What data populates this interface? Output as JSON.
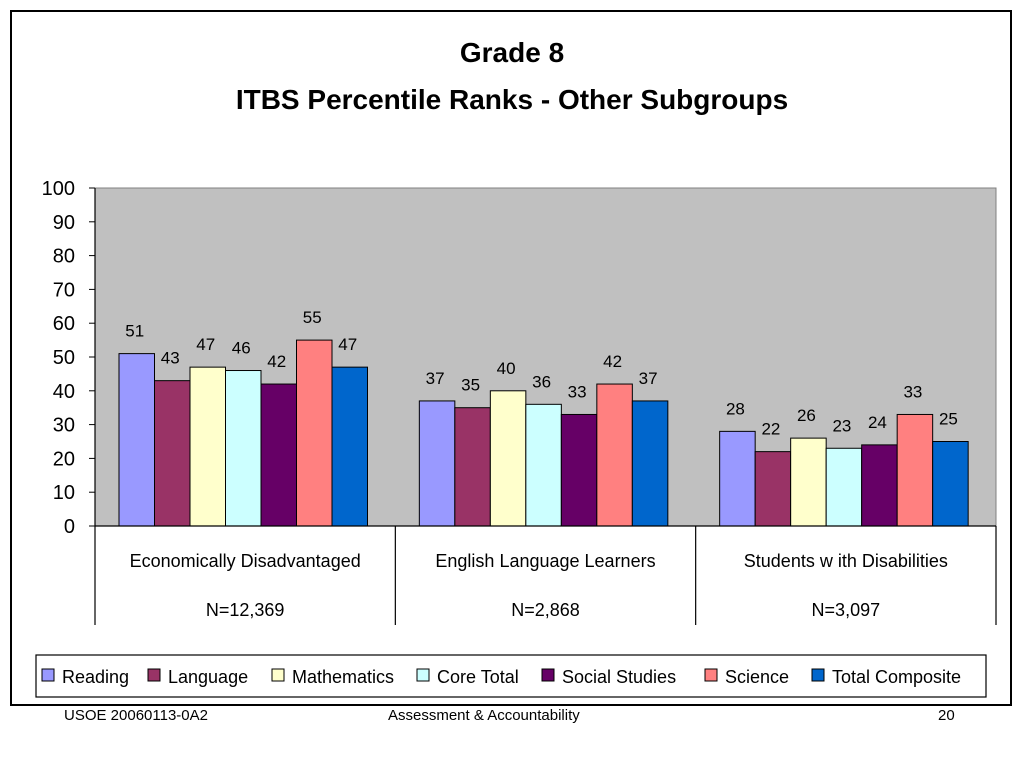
{
  "chart_data": {
    "type": "bar",
    "title": "Grade 8",
    "subtitle": "ITBS Percentile Ranks - Other Subgroups",
    "xlabel": "",
    "ylabel": "",
    "ylim": [
      0,
      100
    ],
    "yticks": [
      0,
      10,
      20,
      30,
      40,
      50,
      60,
      70,
      80,
      90,
      100
    ],
    "grid": false,
    "legend_position": "bottom",
    "categories": [
      "Economically Disadvantaged",
      "English Language Learners",
      "Students w ith Disabilities"
    ],
    "category_counts": [
      "N=12,369",
      "N=2,868",
      "N=3,097"
    ],
    "series": [
      {
        "name": "Reading",
        "color": "#9999ff",
        "values": [
          51,
          37,
          28
        ]
      },
      {
        "name": "Language",
        "color": "#993366",
        "values": [
          43,
          35,
          22
        ]
      },
      {
        "name": "Mathematics",
        "color": "#ffffcc",
        "values": [
          47,
          40,
          26
        ]
      },
      {
        "name": "Core Total",
        "color": "#ccffff",
        "values": [
          46,
          36,
          23
        ]
      },
      {
        "name": "Social Studies",
        "color": "#660066",
        "values": [
          42,
          33,
          24
        ]
      },
      {
        "name": "Science",
        "color": "#ff8080",
        "values": [
          55,
          42,
          33
        ]
      },
      {
        "name": "Total Composite",
        "color": "#0066cc",
        "values": [
          47,
          37,
          25
        ]
      }
    ],
    "plot_background": "#c0c0c0"
  },
  "footer": {
    "left": "USOE 20060113-0A2",
    "center": "Assessment & Accountability",
    "right": "20"
  }
}
